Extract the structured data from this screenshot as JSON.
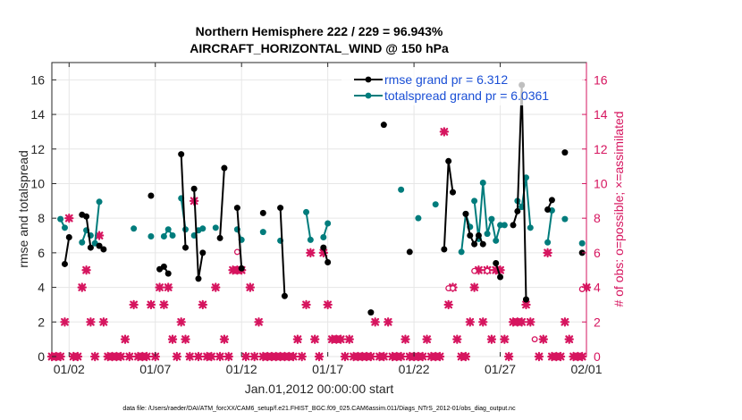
{
  "chart_data": {
    "type": "line",
    "title_line1": "Northern Hemisphere 222 / 229 = 96.943%",
    "title_line2": "AIRCRAFT_HORIZONTAL_WIND @ 150 hPa",
    "xlabel": "Jan.01,2012 00:00:00 start",
    "ylabel_left": "rmse and totalspread",
    "ylabel_right": "# of obs: o=possible; ×=assimilated",
    "footer": "data file: /Users/raeder/DAI/ATM_forcXX/CAM6_setup/f.e21.FHIST_BGC.f09_025.CAM6assim.011/Diags_NTrS_2012-01/obs_diag_output.nc",
    "xlim": [
      1,
      32
    ],
    "ylim": [
      0,
      17
    ],
    "y2lim": [
      0,
      17
    ],
    "xticks": [
      2,
      7,
      12,
      17,
      22,
      27,
      32
    ],
    "xtick_labels": [
      "01/02",
      "01/07",
      "01/12",
      "01/17",
      "01/22",
      "01/27",
      "02/01"
    ],
    "yticks": [
      0,
      2,
      4,
      6,
      8,
      10,
      12,
      14,
      16
    ],
    "ytick_labels": [
      "0",
      "2",
      "4",
      "6",
      "8",
      "10",
      "12",
      "14",
      "16"
    ],
    "y2tick_labels": [
      "0",
      "2",
      "4",
      "6",
      "8",
      "10",
      "12",
      "14",
      "16"
    ],
    "legend": [
      {
        "label": "rmse grand pr = 6.312",
        "color": "#000000"
      },
      {
        "label": "totalspread grand pr = 6.0361",
        "color": "#007c7c"
      }
    ],
    "colors": {
      "rmse": "#000000",
      "spread": "#007c7c",
      "obs": "#d6155f",
      "legend_text": "#1a4fd6"
    },
    "series": [
      {
        "name": "rmse",
        "segments": [
          [
            [
              1.75,
              5.35
            ],
            [
              2.0,
              6.9
            ]
          ],
          [
            [
              2.75,
              8.2
            ],
            [
              3.0,
              8.1
            ],
            [
              3.25,
              6.3
            ]
          ],
          [
            [
              3.75,
              6.4
            ],
            [
              4.0,
              6.2
            ]
          ],
          [
            [
              6.75,
              9.3
            ]
          ],
          [
            [
              7.25,
              5.05
            ],
            [
              7.5,
              5.2
            ],
            [
              7.75,
              4.8
            ]
          ],
          [
            [
              8.5,
              11.7
            ],
            [
              8.75,
              6.3
            ]
          ],
          [
            [
              9.25,
              9.7
            ],
            [
              9.5,
              4.5
            ],
            [
              9.75,
              6.0
            ]
          ],
          [
            [
              10.75,
              6.85
            ],
            [
              11.0,
              10.9
            ]
          ],
          [
            [
              11.75,
              8.6
            ],
            [
              12.0,
              5.1
            ]
          ],
          [
            [
              13.25,
              8.3
            ]
          ],
          [
            [
              14.25,
              8.6
            ],
            [
              14.5,
              3.5
            ]
          ],
          [
            [
              16.75,
              6.3
            ],
            [
              17.0,
              5.45
            ]
          ],
          [
            [
              19.5,
              2.55
            ]
          ],
          [
            [
              20.25,
              13.4
            ]
          ],
          [
            [
              21.75,
              6.05
            ]
          ],
          [
            [
              23.75,
              6.2
            ],
            [
              24.0,
              11.3
            ],
            [
              24.25,
              9.5
            ]
          ],
          [
            [
              25.0,
              8.25
            ],
            [
              25.25,
              7.0
            ],
            [
              25.5,
              6.5
            ],
            [
              25.75,
              7.0
            ],
            [
              26.0,
              6.5
            ]
          ],
          [
            [
              26.75,
              5.4
            ],
            [
              27.0,
              4.6
            ]
          ],
          [
            [
              27.75,
              7.6
            ],
            [
              28.0,
              8.4
            ],
            [
              28.25,
              15.7
            ],
            [
              28.5,
              3.3
            ]
          ],
          [
            [
              29.75,
              8.5
            ],
            [
              30.0,
              9.05
            ]
          ],
          [
            [
              30.75,
              11.8
            ]
          ],
          [
            [
              31.75,
              6.0
            ]
          ]
        ]
      },
      {
        "name": "totalspread",
        "segments": [
          [
            [
              1.5,
              7.95
            ],
            [
              1.75,
              7.45
            ]
          ],
          [
            [
              2.75,
              6.6
            ],
            [
              3.0,
              7.3
            ],
            [
              3.25,
              7.0
            ]
          ],
          [
            [
              3.5,
              6.55
            ],
            [
              3.75,
              8.95
            ]
          ],
          [
            [
              5.75,
              7.4
            ]
          ],
          [
            [
              6.75,
              6.95
            ]
          ],
          [
            [
              7.5,
              6.95
            ],
            [
              7.75,
              7.35
            ],
            [
              8.0,
              7.0
            ]
          ],
          [
            [
              8.5,
              9.15
            ],
            [
              8.75,
              7.35
            ]
          ],
          [
            [
              9.25,
              7.0
            ],
            [
              9.5,
              7.3
            ],
            [
              9.75,
              7.4
            ]
          ],
          [
            [
              10.5,
              7.45
            ]
          ],
          [
            [
              11.75,
              7.35
            ],
            [
              12.0,
              6.75
            ]
          ],
          [
            [
              13.25,
              7.2
            ]
          ],
          [
            [
              14.25,
              6.7
            ]
          ],
          [
            [
              15.75,
              8.35
            ],
            [
              16.0,
              6.75
            ]
          ],
          [
            [
              16.75,
              6.9
            ],
            [
              17.0,
              7.7
            ]
          ],
          [
            [
              21.25,
              9.65
            ]
          ],
          [
            [
              22.25,
              8.0
            ]
          ],
          [
            [
              23.25,
              8.8
            ]
          ],
          [
            [
              24.75,
              6.05
            ],
            [
              25.0,
              8.25
            ],
            [
              25.25,
              7.5
            ]
          ],
          [
            [
              25.5,
              9.0
            ],
            [
              25.75,
              6.8
            ],
            [
              26.0,
              10.05
            ],
            [
              26.25,
              7.1
            ],
            [
              26.5,
              7.95
            ],
            [
              26.75,
              6.7
            ],
            [
              27.0,
              7.6
            ],
            [
              27.25,
              7.6
            ]
          ],
          [
            [
              28.0,
              9.0
            ],
            [
              28.25,
              8.65
            ],
            [
              28.5,
              10.35
            ],
            [
              28.75,
              7.45
            ]
          ],
          [
            [
              29.75,
              6.6
            ],
            [
              30.0,
              8.45
            ]
          ],
          [
            [
              30.75,
              7.95
            ]
          ],
          [
            [
              31.75,
              6.55
            ]
          ]
        ]
      }
    ],
    "obs_possible": [
      [
        11.75,
        6.05
      ],
      [
        24.0,
        3.95
      ],
      [
        24.25,
        3.95
      ],
      [
        25.5,
        4.95
      ],
      [
        26.25,
        4.95
      ],
      [
        29.0,
        1.0
      ],
      [
        31.75,
        3.9
      ]
    ],
    "obs_assimilated": [
      [
        1.0,
        0
      ],
      [
        1.25,
        0
      ],
      [
        1.5,
        0
      ],
      [
        1.75,
        2
      ],
      [
        2.0,
        8
      ],
      [
        2.25,
        0
      ],
      [
        2.5,
        0
      ],
      [
        2.75,
        4
      ],
      [
        3.0,
        5
      ],
      [
        3.25,
        2
      ],
      [
        3.5,
        0
      ],
      [
        3.75,
        7
      ],
      [
        4.0,
        2
      ],
      [
        4.25,
        0
      ],
      [
        4.5,
        0
      ],
      [
        4.75,
        0
      ],
      [
        5.0,
        0
      ],
      [
        5.25,
        1
      ],
      [
        5.5,
        0
      ],
      [
        5.75,
        3
      ],
      [
        6.0,
        0
      ],
      [
        6.25,
        0
      ],
      [
        6.5,
        0
      ],
      [
        6.75,
        3
      ],
      [
        7.0,
        0
      ],
      [
        7.25,
        4
      ],
      [
        7.5,
        3
      ],
      [
        7.75,
        4
      ],
      [
        8.0,
        1
      ],
      [
        8.25,
        0
      ],
      [
        8.5,
        2
      ],
      [
        8.75,
        1
      ],
      [
        9.0,
        0
      ],
      [
        9.25,
        9
      ],
      [
        9.5,
        0
      ],
      [
        9.75,
        3
      ],
      [
        10.0,
        0
      ],
      [
        10.25,
        0
      ],
      [
        10.5,
        4
      ],
      [
        10.75,
        0
      ],
      [
        11.0,
        1
      ],
      [
        11.25,
        0
      ],
      [
        11.5,
        5
      ],
      [
        11.75,
        5
      ],
      [
        12.0,
        5
      ],
      [
        12.25,
        0
      ],
      [
        12.5,
        4
      ],
      [
        12.75,
        0
      ],
      [
        13.0,
        2
      ],
      [
        13.25,
        0
      ],
      [
        13.5,
        0
      ],
      [
        13.75,
        0
      ],
      [
        14.0,
        0
      ],
      [
        14.25,
        0
      ],
      [
        14.5,
        0
      ],
      [
        14.75,
        0
      ],
      [
        15.0,
        0
      ],
      [
        15.25,
        1
      ],
      [
        15.5,
        0
      ],
      [
        15.75,
        3
      ],
      [
        16.0,
        6
      ],
      [
        16.25,
        1
      ],
      [
        16.5,
        0
      ],
      [
        16.75,
        6
      ],
      [
        17.0,
        3
      ],
      [
        17.25,
        1
      ],
      [
        17.5,
        1
      ],
      [
        17.75,
        1
      ],
      [
        18.0,
        0
      ],
      [
        18.25,
        1
      ],
      [
        18.5,
        0
      ],
      [
        18.75,
        0
      ],
      [
        19.0,
        0
      ],
      [
        19.25,
        0
      ],
      [
        19.5,
        0
      ],
      [
        19.75,
        2
      ],
      [
        20.0,
        0
      ],
      [
        20.25,
        0
      ],
      [
        20.5,
        2
      ],
      [
        20.75,
        0
      ],
      [
        21.0,
        0
      ],
      [
        21.25,
        0
      ],
      [
        21.5,
        1
      ],
      [
        21.75,
        0
      ],
      [
        22.0,
        0
      ],
      [
        22.25,
        0
      ],
      [
        22.5,
        0
      ],
      [
        22.75,
        1
      ],
      [
        23.0,
        0
      ],
      [
        23.25,
        0
      ],
      [
        23.5,
        0
      ],
      [
        23.75,
        13
      ],
      [
        24.0,
        3
      ],
      [
        24.25,
        4
      ],
      [
        24.5,
        1
      ],
      [
        24.75,
        0
      ],
      [
        25.0,
        0
      ],
      [
        25.25,
        2
      ],
      [
        25.5,
        4
      ],
      [
        25.75,
        5
      ],
      [
        26.0,
        2
      ],
      [
        26.25,
        5
      ],
      [
        26.5,
        1
      ],
      [
        26.75,
        5
      ],
      [
        27.0,
        5
      ],
      [
        27.25,
        1
      ],
      [
        27.5,
        0
      ],
      [
        27.75,
        2
      ],
      [
        28.0,
        2
      ],
      [
        28.25,
        2
      ],
      [
        28.5,
        3
      ],
      [
        28.75,
        2
      ],
      [
        29.25,
        0
      ],
      [
        29.5,
        1
      ],
      [
        29.75,
        6
      ],
      [
        30.0,
        0
      ],
      [
        30.25,
        0
      ],
      [
        30.5,
        0
      ],
      [
        30.75,
        2
      ],
      [
        31.0,
        1
      ],
      [
        31.25,
        0
      ],
      [
        31.5,
        0
      ],
      [
        31.75,
        0
      ],
      [
        32.0,
        4
      ]
    ]
  }
}
